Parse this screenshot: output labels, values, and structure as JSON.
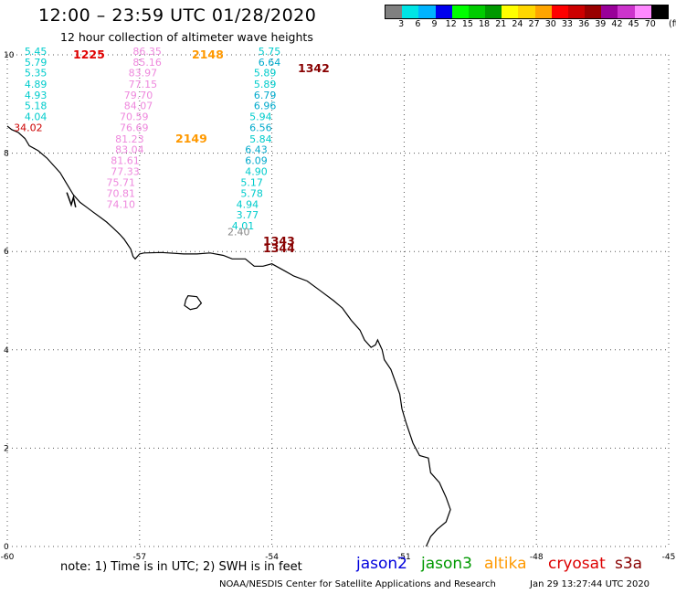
{
  "title": "12:00 – 23:59 UTC 01/28/2020",
  "subtitle": "12 hour collection of altimeter wave heights",
  "legend": {
    "unit_label": "(ft)",
    "bins": [
      {
        "label": "",
        "color": "#808080"
      },
      {
        "label": "3",
        "color": "#00e5e5"
      },
      {
        "label": "6",
        "color": "#00b4ff"
      },
      {
        "label": "9",
        "color": "#0000ee"
      },
      {
        "label": "12",
        "color": "#00ff00"
      },
      {
        "label": "15",
        "color": "#00cc00"
      },
      {
        "label": "18",
        "color": "#009900"
      },
      {
        "label": "21",
        "color": "#ffff00"
      },
      {
        "label": "24",
        "color": "#ffd700"
      },
      {
        "label": "27",
        "color": "#ffa500"
      },
      {
        "label": "30",
        "color": "#ff0000"
      },
      {
        "label": "33",
        "color": "#cc0000"
      },
      {
        "label": "36",
        "color": "#990000"
      },
      {
        "label": "39",
        "color": "#990099"
      },
      {
        "label": "42",
        "color": "#cc33cc"
      },
      {
        "label": "45",
        "color": "#ff88ff"
      },
      {
        "label": "70",
        "color": "#000000"
      }
    ]
  },
  "axes": {
    "lon_ticks": [
      "-60",
      "-57",
      "-54",
      "-51",
      "-48",
      "-45"
    ],
    "lat_ticks": [
      "0",
      "2",
      "4",
      "6",
      "8",
      "10"
    ],
    "lon_range": [
      -60,
      -45
    ],
    "lat_range": [
      0,
      10
    ],
    "grid": "dotted"
  },
  "map_features": {
    "coastline": "Guianas / northern Brazil coast",
    "island": "small island near 5.1N -55.9W"
  },
  "tracks": [
    {
      "name": "track-1225",
      "pass": "1225",
      "pass_color": "#e00000",
      "values": [
        {
          "v": "5.45",
          "c": "#00cccc",
          "lon": -59.1,
          "lat": 10.0
        },
        {
          "v": "5.79",
          "c": "#00cccc",
          "lon": -59.1,
          "lat": 9.78
        },
        {
          "v": "5.35",
          "c": "#00cccc",
          "lon": -59.1,
          "lat": 9.56
        },
        {
          "v": "4.89",
          "c": "#00cccc",
          "lon": -59.1,
          "lat": 9.33
        },
        {
          "v": "4.93",
          "c": "#00cccc",
          "lon": -59.1,
          "lat": 9.11
        },
        {
          "v": "5.18",
          "c": "#00cccc",
          "lon": -59.1,
          "lat": 8.89
        },
        {
          "v": "4.04",
          "c": "#00cccc",
          "lon": -59.1,
          "lat": 8.67
        },
        {
          "v": "34.02",
          "c": "#cc0000",
          "lon": -59.2,
          "lat": 8.45
        }
      ]
    },
    {
      "name": "track-2148",
      "pass": "2148",
      "pass_color": "#ff9900",
      "pass2": "2149",
      "pass2_color": "#ff9900",
      "values": [
        {
          "v": "86.35",
          "c": "#ee88dd",
          "lon": -56.5,
          "lat": 10.0
        },
        {
          "v": "85.16",
          "c": "#ee88dd",
          "lon": -56.5,
          "lat": 9.78
        },
        {
          "v": "83.97",
          "c": "#ee88dd",
          "lon": -56.6,
          "lat": 9.56
        },
        {
          "v": "77.15",
          "c": "#ee88dd",
          "lon": -56.6,
          "lat": 9.33
        },
        {
          "v": "79.70",
          "c": "#ee88dd",
          "lon": -56.7,
          "lat": 9.11
        },
        {
          "v": "84.07",
          "c": "#ee88dd",
          "lon": -56.7,
          "lat": 8.89
        },
        {
          "v": "70.59",
          "c": "#ee88dd",
          "lon": -56.8,
          "lat": 8.67
        },
        {
          "v": "76.69",
          "c": "#ee88dd",
          "lon": -56.8,
          "lat": 8.45
        },
        {
          "v": "81.23",
          "c": "#ee88dd",
          "lon": -56.9,
          "lat": 8.22
        },
        {
          "v": "83.04",
          "c": "#ee88dd",
          "lon": -56.9,
          "lat": 8.0
        },
        {
          "v": "81.61",
          "c": "#ee88dd",
          "lon": -57.0,
          "lat": 7.78
        },
        {
          "v": "77.33",
          "c": "#ee88dd",
          "lon": -57.0,
          "lat": 7.56
        },
        {
          "v": "75.71",
          "c": "#ee88dd",
          "lon": -57.1,
          "lat": 7.33
        },
        {
          "v": "70.81",
          "c": "#ee88dd",
          "lon": -57.1,
          "lat": 7.11
        },
        {
          "v": "74.10",
          "c": "#ee88dd",
          "lon": -57.1,
          "lat": 6.89
        }
      ]
    },
    {
      "name": "track-1342",
      "pass": "1342",
      "pass_color": "#880000",
      "pass2": "1343",
      "pass2_color": "#880000",
      "pass3": "1344",
      "pass3_color": "#880000",
      "values": [
        {
          "v": "5.75",
          "c": "#00cccc",
          "lon": -53.8,
          "lat": 10.0
        },
        {
          "v": "6.64",
          "c": "#00aacc",
          "lon": -53.8,
          "lat": 9.78
        },
        {
          "v": "5.89",
          "c": "#00cccc",
          "lon": -53.9,
          "lat": 9.56
        },
        {
          "v": "5.89",
          "c": "#00cccc",
          "lon": -53.9,
          "lat": 9.33
        },
        {
          "v": "6.79",
          "c": "#00aacc",
          "lon": -53.9,
          "lat": 9.11
        },
        {
          "v": "6.96",
          "c": "#00aacc",
          "lon": -53.9,
          "lat": 8.89
        },
        {
          "v": "5.94",
          "c": "#00cccc",
          "lon": -54.0,
          "lat": 8.67
        },
        {
          "v": "6.56",
          "c": "#00aacc",
          "lon": -54.0,
          "lat": 8.45
        },
        {
          "v": "5.84",
          "c": "#00cccc",
          "lon": -54.0,
          "lat": 8.22
        },
        {
          "v": "6.43",
          "c": "#00aacc",
          "lon": -54.1,
          "lat": 8.0
        },
        {
          "v": "6.09",
          "c": "#00aacc",
          "lon": -54.1,
          "lat": 7.78
        },
        {
          "v": "4.90",
          "c": "#00cccc",
          "lon": -54.1,
          "lat": 7.56
        },
        {
          "v": "5.17",
          "c": "#00cccc",
          "lon": -54.2,
          "lat": 7.33
        },
        {
          "v": "5.78",
          "c": "#00cccc",
          "lon": -54.2,
          "lat": 7.11
        },
        {
          "v": "4.94",
          "c": "#00cccc",
          "lon": -54.3,
          "lat": 6.89
        },
        {
          "v": "3.77",
          "c": "#00cccc",
          "lon": -54.3,
          "lat": 6.67
        },
        {
          "v": "4.01",
          "c": "#00cccc",
          "lon": -54.4,
          "lat": 6.45
        },
        {
          "v": "2.40",
          "c": "#888888",
          "lon": -54.5,
          "lat": 6.33
        }
      ]
    }
  ],
  "note": "note:  1) Time is in UTC;  2) SWH is in feet",
  "satellites": [
    {
      "name": "jason2",
      "color": "#0000dd"
    },
    {
      "name": "jason3",
      "color": "#009900"
    },
    {
      "name": "altika",
      "color": "#ff9900"
    },
    {
      "name": "cryosat",
      "color": "#dd0000"
    },
    {
      "name": "s3a",
      "color": "#880000"
    }
  ],
  "credit": "NOAA/NESDIS Center for Satellite Applications and Research",
  "timestamp": "Jan 29 13:27:44 UTC 2020"
}
